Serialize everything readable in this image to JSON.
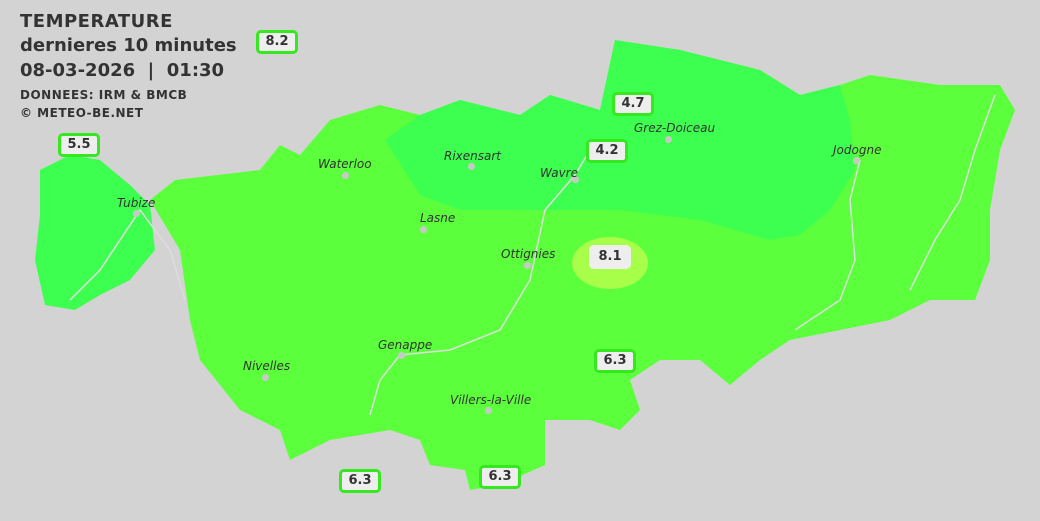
{
  "header": {
    "title": "TEMPERATURE",
    "subtitle": "dernieres 10 minutes",
    "datetime": "08-03-2026  |  01:30",
    "source": "DONNEES: IRM & BMCB",
    "copyright": "© METEO-BE.NET"
  },
  "colors": {
    "background": "#d3d3d3",
    "zone_warm": "#5cff3c",
    "zone_cool": "#3dff4f",
    "zone_hot": "#a8ff4a",
    "badge_border": "#35e820"
  },
  "cities": [
    {
      "name": "Waterloo"
    },
    {
      "name": "Rixensart"
    },
    {
      "name": "Wavre"
    },
    {
      "name": "Grez-Doiceau"
    },
    {
      "name": "Jodogne"
    },
    {
      "name": "Tubize"
    },
    {
      "name": "Lasne"
    },
    {
      "name": "Ottignies"
    },
    {
      "name": "Genappe"
    },
    {
      "name": "Nivelles"
    },
    {
      "name": "Villers-la-Ville"
    }
  ],
  "stations": [
    {
      "value": "8.2"
    },
    {
      "value": "5.5"
    },
    {
      "value": "4.7"
    },
    {
      "value": "4.2"
    },
    {
      "value": "8.1"
    },
    {
      "value": "6.3"
    },
    {
      "value": "6.3"
    },
    {
      "value": "6.3"
    }
  ]
}
